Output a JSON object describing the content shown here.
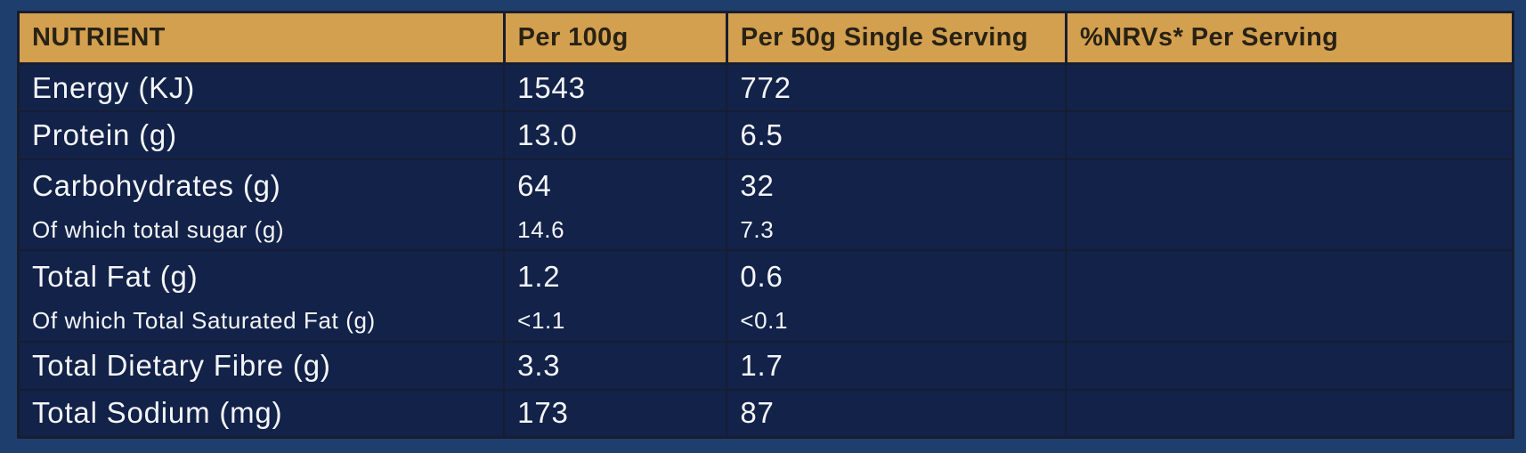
{
  "colors": {
    "frame": "#1E3F6E",
    "gold": "#D3A050",
    "header-text": "#282214",
    "navy": "#122249",
    "grid-line": "#161D33",
    "table-border": "#181D2E",
    "body-text": "#F4F5F7"
  },
  "table": {
    "columns": [
      "NUTRIENT",
      "Per 100g",
      "Per 50g Single Serving",
      "%NRVs* Per Serving"
    ],
    "rows": [
      {
        "nutrient": "Energy (KJ)",
        "per100": "1543",
        "per50": "772",
        "nrv": ""
      },
      {
        "nutrient": "Protein (g)",
        "per100": "13.0",
        "per50": "6.5",
        "nrv": ""
      },
      {
        "nutrient": "Carbohydrates (g)",
        "per100": "64",
        "per50": "32",
        "nrv": "",
        "sub": {
          "nutrient": "Of which total sugar (g)",
          "per100": "14.6",
          "per50": "7.3",
          "nrv": ""
        }
      },
      {
        "nutrient": "Total Fat (g)",
        "per100": "1.2",
        "per50": "0.6",
        "nrv": "",
        "sub": {
          "nutrient": "Of which Total Saturated Fat (g)",
          "per100": "<1.1",
          "per50": "<0.1",
          "nrv": ""
        }
      },
      {
        "nutrient": "Total Dietary Fibre (g)",
        "per100": "3.3",
        "per50": "1.7",
        "nrv": ""
      },
      {
        "nutrient": "Total Sodium (mg)",
        "per100": "173",
        "per50": "87",
        "nrv": ""
      }
    ]
  }
}
